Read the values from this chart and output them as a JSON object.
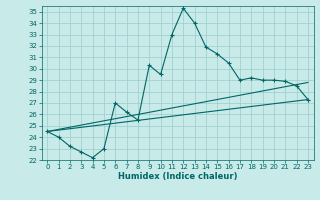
{
  "xlabel": "Humidex (Indice chaleur)",
  "bg_color": "#c8eae8",
  "line_color": "#006666",
  "grid_color": "#99ccca",
  "xlim": [
    -0.5,
    23.5
  ],
  "ylim": [
    22,
    35.5
  ],
  "yticks": [
    22,
    23,
    24,
    25,
    26,
    27,
    28,
    29,
    30,
    31,
    32,
    33,
    34,
    35
  ],
  "xticks": [
    0,
    1,
    2,
    3,
    4,
    5,
    6,
    7,
    8,
    9,
    10,
    11,
    12,
    13,
    14,
    15,
    16,
    17,
    18,
    19,
    20,
    21,
    22,
    23
  ],
  "main_x": [
    0,
    1,
    2,
    3,
    4,
    5,
    6,
    7,
    8,
    9,
    10,
    11,
    12,
    13,
    14,
    15,
    16,
    17,
    18,
    19,
    20,
    21,
    22,
    23
  ],
  "main_y": [
    24.5,
    24.0,
    23.2,
    22.7,
    22.2,
    23.0,
    27.0,
    26.2,
    25.5,
    30.3,
    29.5,
    33.0,
    35.3,
    34.0,
    31.9,
    31.3,
    30.5,
    29.0,
    29.2,
    29.0,
    29.0,
    28.9,
    28.5,
    27.3
  ],
  "trend1_x": [
    0,
    23
  ],
  "trend1_y": [
    24.5,
    27.3
  ],
  "trend2_x": [
    0,
    23
  ],
  "trend2_y": [
    24.5,
    28.8
  ],
  "xlabel_fontsize": 6,
  "tick_fontsize": 5
}
